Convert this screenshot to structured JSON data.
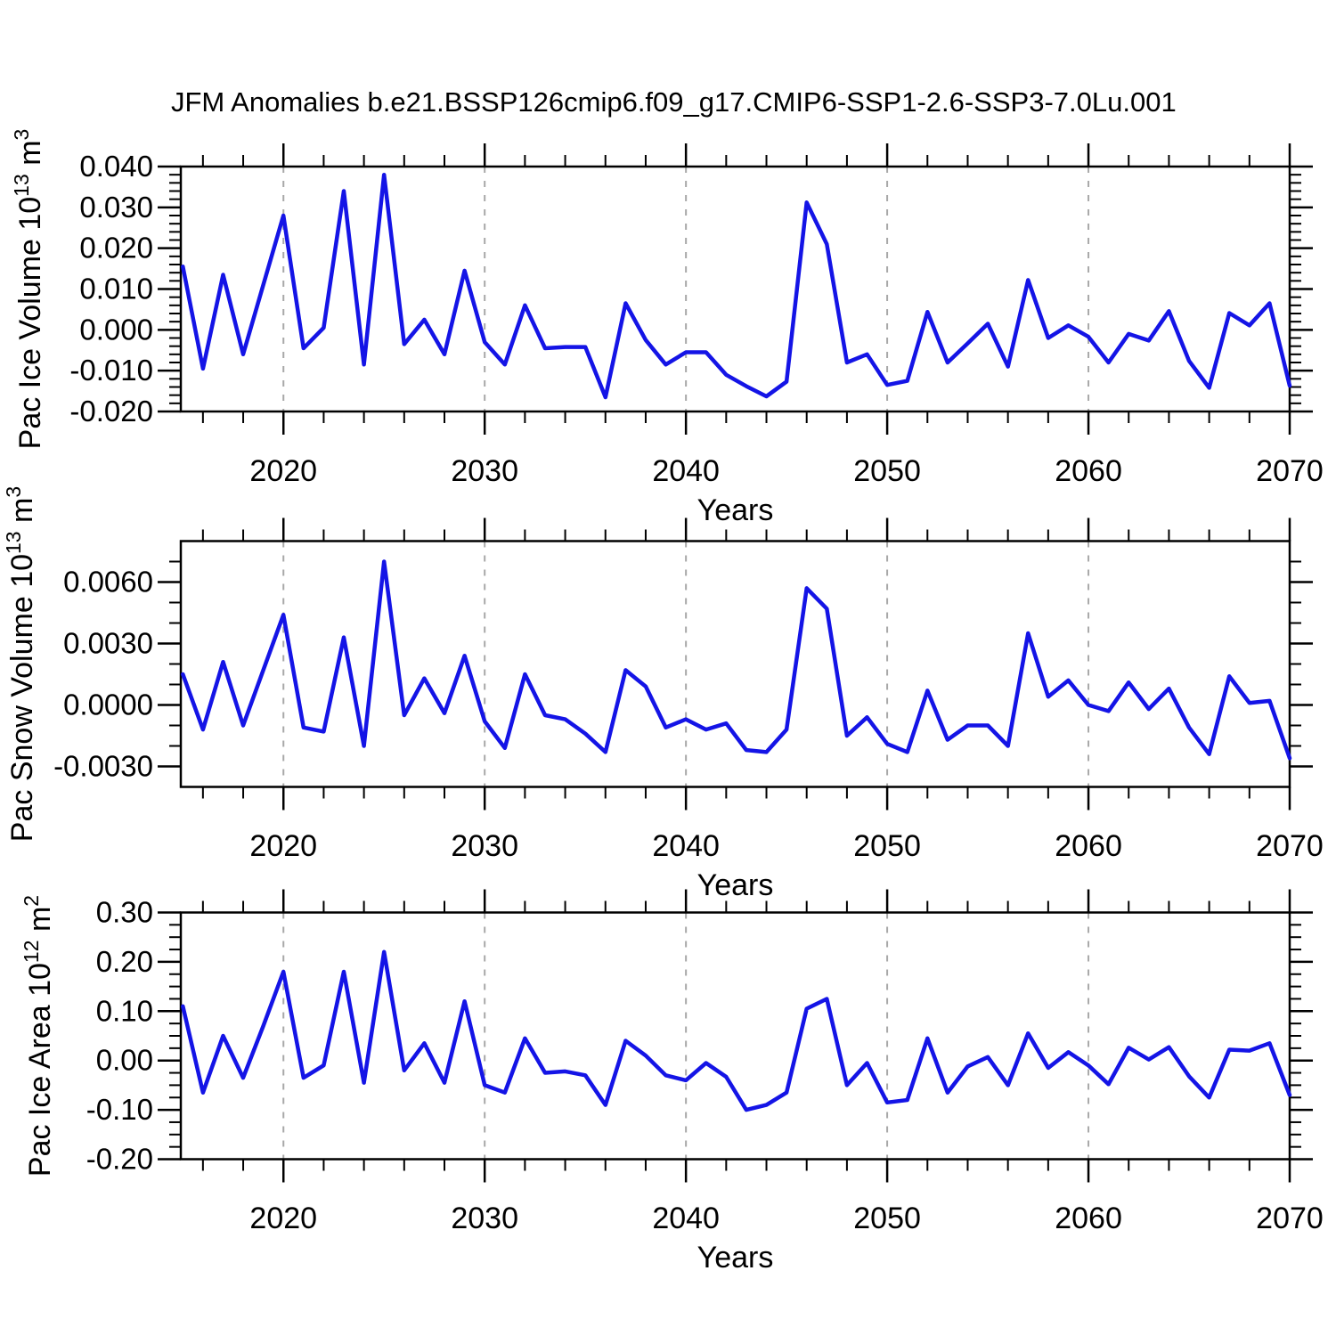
{
  "header": {
    "title": "JFM Anomalies b.e21.BSSP126cmip6.f09_g17.CMIP6-SSP1-2.6-SSP3-7.0Lu.001"
  },
  "colors": {
    "line": "#1414e6",
    "grid": "#a8a8a8",
    "frame": "#000000",
    "text": "#000000",
    "background": "#ffffff"
  },
  "chart_data": [
    {
      "type": "line",
      "ylabel": {
        "main": "Pac Ice Volume 10",
        "sup": "13",
        "unit": " m",
        "unit_sup": "3"
      },
      "xlabel": "Years",
      "x_start": 2015,
      "x_step": 1,
      "xlim": [
        2014.9,
        2070
      ],
      "ylim": [
        -0.02,
        0.04
      ],
      "grid": "x-dashed",
      "legend": "none",
      "xticks": {
        "values": [
          2020,
          2030,
          2040,
          2050,
          2060,
          2070
        ],
        "labels": [
          "2020",
          "2030",
          "2040",
          "2050",
          "2060",
          "2070"
        ]
      },
      "xminor_step": 2,
      "grid_x": [
        2020,
        2030,
        2040,
        2050,
        2060
      ],
      "yticks": {
        "values": [
          0.04,
          0.03,
          0.02,
          0.01,
          0.0,
          -0.01,
          -0.02
        ],
        "labels": [
          "0.040",
          "0.030",
          "0.020",
          "0.010",
          "0.000",
          "-0.010",
          "-0.020"
        ]
      },
      "yminor_step": 0.002,
      "series": [
        {
          "name": "JFM Pac Ice Volume anomaly",
          "values": [
            0.0155,
            -0.0095,
            0.0135,
            -0.006,
            0.011,
            0.028,
            -0.0045,
            0.0005,
            0.034,
            -0.0085,
            0.038,
            -0.0035,
            0.0025,
            -0.006,
            0.0145,
            -0.003,
            -0.0085,
            0.006,
            -0.0045,
            -0.0042,
            -0.0042,
            -0.0165,
            0.0065,
            -0.0025,
            -0.0085,
            -0.0055,
            -0.0055,
            -0.011,
            -0.0138,
            -0.0163,
            -0.0127,
            0.0312,
            0.021,
            -0.008,
            -0.006,
            -0.0135,
            -0.0125,
            0.0044,
            -0.008,
            -0.0033,
            0.0015,
            -0.009,
            0.0122,
            -0.002,
            0.0011,
            -0.0017,
            -0.008,
            -0.001,
            -0.0026,
            0.0046,
            -0.0076,
            -0.0142,
            0.0041,
            0.0011,
            0.0065,
            -0.0137
          ]
        }
      ]
    },
    {
      "type": "line",
      "ylabel": {
        "main": "Pac Snow Volume 10",
        "sup": "13",
        "unit": " m",
        "unit_sup": "3"
      },
      "xlabel": "Years",
      "x_start": 2015,
      "x_step": 1,
      "xlim": [
        2014.9,
        2070
      ],
      "ylim": [
        -0.004,
        0.008
      ],
      "grid": "x-dashed",
      "legend": "none",
      "xticks": {
        "values": [
          2020,
          2030,
          2040,
          2050,
          2060,
          2070
        ],
        "labels": [
          "2020",
          "2030",
          "2040",
          "2050",
          "2060",
          "2070"
        ]
      },
      "xminor_step": 2,
      "grid_x": [
        2020,
        2030,
        2040,
        2050,
        2060
      ],
      "yticks": {
        "values": [
          0.006,
          0.003,
          0.0,
          -0.003
        ],
        "labels": [
          "0.0060",
          "0.0030",
          "0.0000",
          "-0.0030"
        ]
      },
      "yminor_step": 0.001,
      "series": [
        {
          "name": "JFM Pac Snow Volume anomaly",
          "values": [
            0.0015,
            -0.0012,
            0.0021,
            -0.001,
            0.0017,
            0.0044,
            -0.0011,
            -0.0013,
            0.0033,
            -0.002,
            0.007,
            -0.0005,
            0.0013,
            -0.0004,
            0.0024,
            -0.0008,
            -0.0021,
            0.0015,
            -0.0005,
            -0.0007,
            -0.0014,
            -0.0023,
            0.0017,
            0.0009,
            -0.0011,
            -0.0007,
            -0.0012,
            -0.0009,
            -0.0022,
            -0.0023,
            -0.0012,
            0.0057,
            0.0047,
            -0.0015,
            -0.0006,
            -0.0019,
            -0.0023,
            0.0007,
            -0.0017,
            -0.001,
            -0.001,
            -0.002,
            0.0035,
            0.0004,
            0.0012,
            0.0,
            -0.0003,
            0.0011,
            -0.0002,
            0.0008,
            -0.0011,
            -0.0024,
            0.0014,
            0.0001,
            0.0002,
            -0.0026
          ]
        }
      ]
    },
    {
      "type": "line",
      "ylabel": {
        "main": "Pac Ice Area 10",
        "sup": "12",
        "unit": " m",
        "unit_sup": "2"
      },
      "xlabel": "Years",
      "x_start": 2015,
      "x_step": 1,
      "xlim": [
        2014.9,
        2070
      ],
      "ylim": [
        -0.2,
        0.3
      ],
      "grid": "x-dashed",
      "legend": "none",
      "xticks": {
        "values": [
          2020,
          2030,
          2040,
          2050,
          2060,
          2070
        ],
        "labels": [
          "2020",
          "2030",
          "2040",
          "2050",
          "2060",
          "2070"
        ]
      },
      "xminor_step": 2,
      "grid_x": [
        2020,
        2030,
        2040,
        2050,
        2060
      ],
      "yticks": {
        "values": [
          0.3,
          0.2,
          0.1,
          0.0,
          -0.1,
          -0.2
        ],
        "labels": [
          "0.30",
          "0.20",
          "0.10",
          "0.00",
          "-0.10",
          "-0.20"
        ]
      },
      "yminor_step": 0.025,
      "series": [
        {
          "name": "JFM Pac Ice Area anomaly",
          "values": [
            0.11,
            -0.065,
            0.05,
            -0.035,
            0.07,
            0.18,
            -0.035,
            -0.01,
            0.18,
            -0.045,
            0.22,
            -0.02,
            0.035,
            -0.045,
            0.12,
            -0.05,
            -0.065,
            0.045,
            -0.025,
            -0.022,
            -0.03,
            -0.09,
            0.04,
            0.01,
            -0.03,
            -0.04,
            -0.005,
            -0.033,
            -0.1,
            -0.09,
            -0.065,
            0.105,
            0.125,
            -0.05,
            -0.005,
            -0.085,
            -0.08,
            0.045,
            -0.065,
            -0.012,
            0.007,
            -0.05,
            0.055,
            -0.015,
            0.017,
            -0.01,
            -0.048,
            0.026,
            0.002,
            0.027,
            -0.032,
            -0.075,
            0.022,
            0.02,
            0.035,
            -0.07
          ]
        }
      ]
    }
  ]
}
